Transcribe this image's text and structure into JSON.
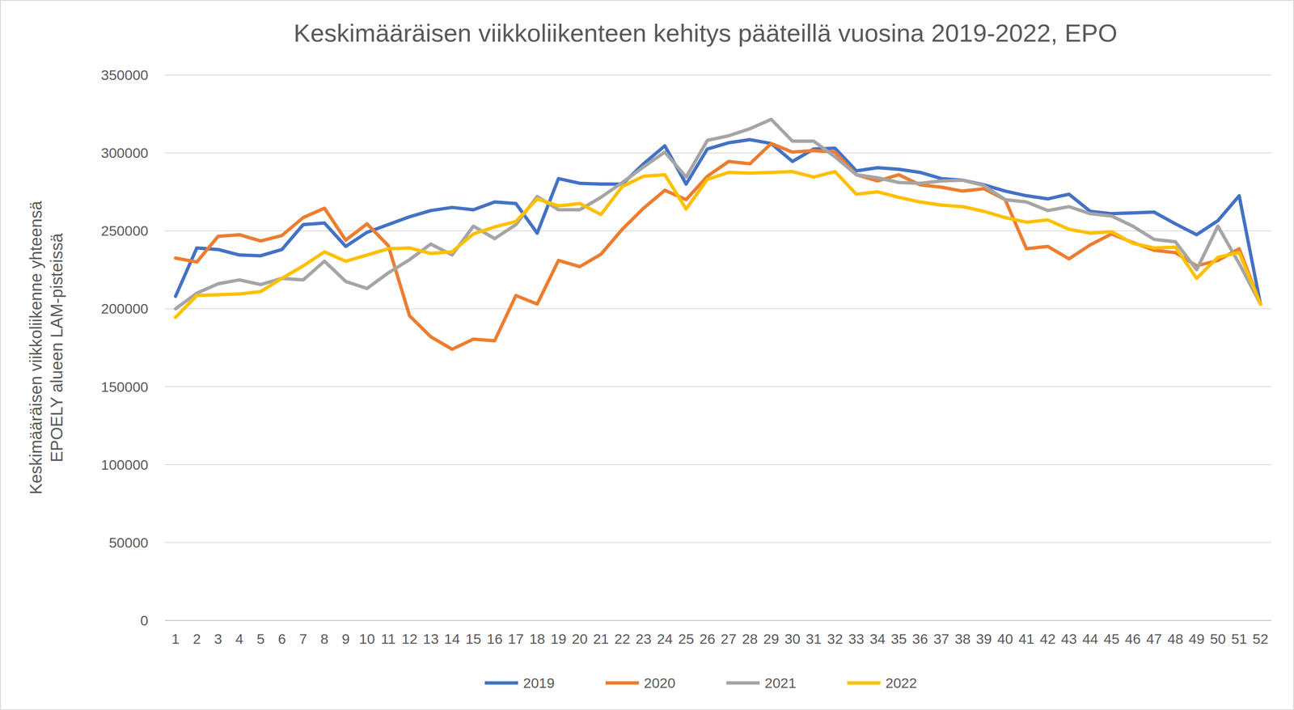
{
  "chart_data": {
    "type": "line",
    "title": "Keskimääräisen viikkoliikenteen kehitys pääteillä vuosina 2019-2022, EPO",
    "y_label": [
      "Keskimääräisen viikkoliikenne yhteensä",
      "EPOELY alueen LAM-pisteissä"
    ],
    "categories": [
      "1",
      "2",
      "3",
      "4",
      "5",
      "6",
      "7",
      "8",
      "9",
      "10",
      "11",
      "12",
      "13",
      "14",
      "15",
      "16",
      "17",
      "18",
      "19",
      "20",
      "21",
      "22",
      "23",
      "24",
      "25",
      "26",
      "27",
      "28",
      "29",
      "30",
      "31",
      "32",
      "33",
      "34",
      "35",
      "36",
      "37",
      "38",
      "39",
      "40",
      "41",
      "42",
      "43",
      "44",
      "45",
      "46",
      "47",
      "48",
      "49",
      "50",
      "51",
      "52"
    ],
    "ylim": [
      0,
      350000
    ],
    "yticks": [
      0,
      50000,
      100000,
      150000,
      200000,
      250000,
      300000,
      350000
    ],
    "grid": true,
    "legend": "bottom",
    "series": [
      {
        "name": "2019",
        "color": "#4472c4",
        "values": [
          208000,
          239000,
          238000,
          234500,
          234000,
          238000,
          254000,
          255000,
          240000,
          249000,
          254000,
          259000,
          263000,
          265000,
          263500,
          268500,
          267500,
          248500,
          283500,
          280500,
          280000,
          280000,
          293000,
          304500,
          280000,
          302500,
          306500,
          308500,
          306000,
          294500,
          302500,
          303000,
          288500,
          290500,
          289500,
          287500,
          283500,
          282500,
          279500,
          275500,
          272500,
          270500,
          273500,
          262500,
          261000,
          261500,
          262000,
          254500,
          247500,
          256500,
          272500,
          203000
        ]
      },
      {
        "name": "2020",
        "color": "#ed7d31",
        "values": [
          232500,
          230000,
          246500,
          247500,
          243500,
          247000,
          258500,
          264500,
          244000,
          254500,
          240500,
          195500,
          182000,
          174000,
          180500,
          179500,
          208500,
          203000,
          231000,
          227000,
          235000,
          251000,
          264500,
          276000,
          270000,
          285000,
          294500,
          293000,
          306000,
          300500,
          301500,
          300500,
          286000,
          282000,
          286000,
          279500,
          278000,
          275500,
          277000,
          270000,
          238500,
          240000,
          232000,
          241000,
          248000,
          242500,
          237500,
          236000,
          227500,
          231000,
          238500,
          203000
        ]
      },
      {
        "name": "2021",
        "color": "#a5a5a5",
        "values": [
          200000,
          210000,
          216000,
          218500,
          215500,
          219500,
          218500,
          230500,
          217500,
          213000,
          223000,
          231500,
          241500,
          234500,
          253000,
          245000,
          254000,
          272000,
          263500,
          263500,
          271500,
          281000,
          291000,
          300500,
          284500,
          308000,
          311000,
          315500,
          321500,
          307500,
          307500,
          297500,
          286000,
          284000,
          281000,
          280500,
          282000,
          282500,
          279000,
          270000,
          268500,
          263000,
          265500,
          261000,
          259500,
          253000,
          244500,
          243000,
          225000,
          253000,
          229000,
          203000
        ]
      },
      {
        "name": "2022",
        "color": "#ffc000",
        "values": [
          194500,
          208500,
          209000,
          209500,
          211000,
          219500,
          227500,
          236500,
          230500,
          234500,
          238500,
          239000,
          235500,
          236500,
          248000,
          252500,
          256000,
          270500,
          266000,
          267500,
          260500,
          278500,
          285000,
          286000,
          264000,
          283000,
          287500,
          287000,
          287500,
          288000,
          284500,
          288000,
          273500,
          275000,
          271500,
          268500,
          266500,
          265500,
          262500,
          258500,
          255500,
          257000,
          251000,
          248500,
          249500,
          242000,
          239000,
          239500,
          219500,
          233000,
          236000,
          203000
        ]
      }
    ]
  }
}
